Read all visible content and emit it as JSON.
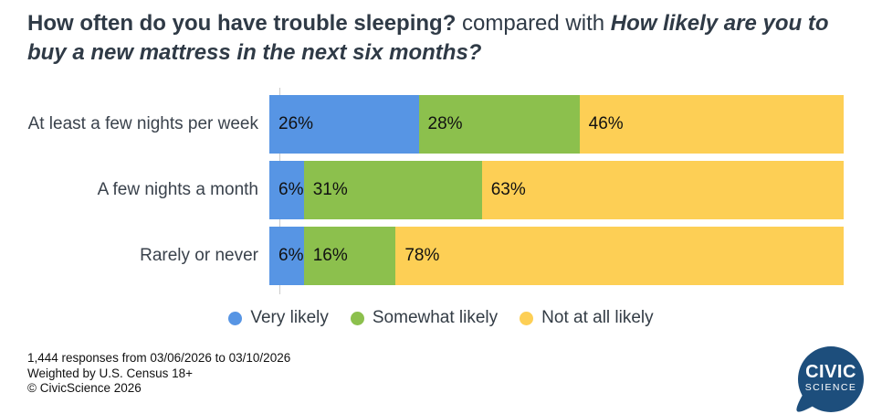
{
  "title": {
    "question1": "How often do you have trouble sleeping?",
    "connector": " compared with ",
    "question2": "How likely are you to buy a new mattress in the next six months?"
  },
  "chart_data": {
    "type": "bar",
    "orientation": "horizontal",
    "stacked": true,
    "unit": "%",
    "categories": [
      "At least a few nights per week",
      "A few nights a month",
      "Rarely or never"
    ],
    "series": [
      {
        "name": "Very likely",
        "color": "#5795e4",
        "values": [
          26,
          6,
          6
        ]
      },
      {
        "name": "Somewhat likely",
        "color": "#8cc04d",
        "values": [
          28,
          31,
          16
        ]
      },
      {
        "name": "Not at all likely",
        "color": "#fdcf55",
        "values": [
          46,
          63,
          78
        ]
      }
    ],
    "xlim": [
      0,
      100
    ],
    "value_labels": "inside-start",
    "legend_position": "bottom",
    "grid": false
  },
  "footer": {
    "line1": "1,444 responses from 03/06/2026 to 03/10/2026",
    "line2": "Weighted by U.S. Census 18+",
    "line3": "© CivicScience 2026"
  },
  "logo": {
    "line1": "CIVIC",
    "line2": "SCIENCE",
    "bubble_color": "#1d4e7c",
    "text_color": "#ffffff"
  }
}
